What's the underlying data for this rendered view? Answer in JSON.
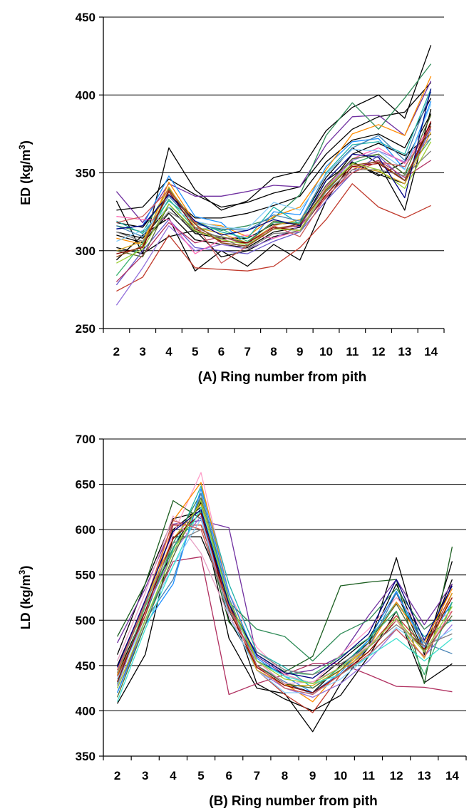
{
  "chart_data": [
    {
      "type": "line",
      "panel": "A",
      "xlabel": "(A)  Ring number from pith",
      "ylabel": "ED (kg/m3)",
      "ylabel_main": "ED (kg/m",
      "ylabel_sup": "3",
      "ylabel_end": ")",
      "x": [
        2,
        3,
        4,
        5,
        6,
        7,
        8,
        9,
        10,
        11,
        12,
        13,
        14
      ],
      "xticks": [
        "2",
        "3",
        "4",
        "5",
        "6",
        "7",
        "8",
        "9",
        "10",
        "11",
        "12",
        "13",
        "14"
      ],
      "ylim": [
        250,
        450
      ],
      "yticks": [
        250,
        300,
        350,
        400,
        450
      ],
      "grid": true,
      "series": [
        {
          "color": "#000000",
          "values": [
            332,
            298,
            366,
            339,
            326,
            332,
            347,
            351,
            377,
            392,
            400,
            385,
            432
          ]
        },
        {
          "color": "#000000",
          "values": [
            326,
            328,
            346,
            336,
            328,
            331,
            337,
            341,
            362,
            378,
            386,
            389,
            408
          ]
        },
        {
          "color": "#000000",
          "values": [
            318,
            315,
            336,
            321,
            321,
            324,
            329,
            335,
            357,
            371,
            375,
            366,
            398
          ]
        },
        {
          "color": "#000000",
          "values": [
            312,
            308,
            328,
            311,
            308,
            308,
            317,
            318,
            347,
            366,
            356,
            326,
            391
          ]
        },
        {
          "color": "#000000",
          "values": [
            294,
            310,
            321,
            287,
            300,
            290,
            304,
            294,
            332,
            357,
            349,
            343,
            382
          ]
        },
        {
          "color": "#000000",
          "values": [
            302,
            298,
            309,
            313,
            296,
            300,
            309,
            313,
            340,
            362,
            369,
            361,
            375
          ]
        },
        {
          "color": "#000000",
          "values": [
            310,
            305,
            324,
            307,
            304,
            302,
            312,
            315,
            345,
            357,
            348,
            357,
            388
          ]
        },
        {
          "color": "#7030a0",
          "values": [
            338,
            318,
            343,
            335,
            335,
            338,
            342,
            341,
            368,
            386,
            387,
            374,
            409
          ]
        },
        {
          "color": "#c0392b",
          "values": [
            274,
            283,
            310,
            289,
            288,
            287,
            290,
            302,
            320,
            343,
            328,
            321,
            329
          ]
        },
        {
          "color": "#2e8b57",
          "values": [
            316,
            312,
            340,
            318,
            313,
            316,
            321,
            336,
            374,
            395,
            378,
            398,
            420
          ]
        },
        {
          "color": "#1e90ff",
          "values": [
            314,
            316,
            348,
            322,
            318,
            303,
            325,
            323,
            354,
            370,
            372,
            352,
            396
          ]
        },
        {
          "color": "#ff8c00",
          "values": [
            308,
            304,
            344,
            318,
            316,
            309,
            322,
            328,
            352,
            375,
            381,
            374,
            412
          ]
        },
        {
          "color": "#9370db",
          "values": [
            265,
            289,
            316,
            300,
            304,
            301,
            308,
            316,
            340,
            358,
            364,
            357,
            372
          ]
        },
        {
          "color": "#6a5acd",
          "values": [
            278,
            300,
            320,
            302,
            300,
            298,
            306,
            312,
            332,
            350,
            361,
            345,
            378
          ]
        },
        {
          "color": "#b03060",
          "values": [
            280,
            297,
            318,
            305,
            309,
            304,
            314,
            316,
            334,
            352,
            358,
            347,
            358
          ]
        },
        {
          "color": "#ff69b4",
          "values": [
            322,
            320,
            320,
            298,
            307,
            310,
            308,
            313,
            341,
            359,
            366,
            356,
            380
          ]
        },
        {
          "color": "#3cb371",
          "values": [
            284,
            305,
            333,
            314,
            314,
            306,
            318,
            318,
            338,
            356,
            362,
            349,
            372
          ]
        },
        {
          "color": "#20b2aa",
          "values": [
            319,
            311,
            332,
            319,
            312,
            308,
            328,
            317,
            350,
            368,
            370,
            362,
            404
          ]
        },
        {
          "color": "#daa520",
          "values": [
            300,
            306,
            341,
            315,
            311,
            305,
            316,
            320,
            336,
            354,
            351,
            343,
            376
          ]
        },
        {
          "color": "#4682b4",
          "values": [
            316,
            309,
            335,
            317,
            314,
            313,
            323,
            319,
            349,
            366,
            374,
            358,
            402
          ]
        },
        {
          "color": "#87cefa",
          "values": [
            306,
            313,
            328,
            319,
            315,
            314,
            331,
            326,
            349,
            365,
            364,
            352,
            394
          ]
        },
        {
          "color": "#556b2f",
          "values": [
            300,
            296,
            330,
            312,
            309,
            305,
            319,
            317,
            342,
            359,
            362,
            349,
            387
          ]
        },
        {
          "color": "#8b0000",
          "values": [
            298,
            302,
            338,
            314,
            306,
            305,
            315,
            313,
            336,
            354,
            356,
            345,
            383
          ]
        },
        {
          "color": "#808080",
          "values": [
            312,
            306,
            325,
            315,
            308,
            301,
            311,
            312,
            338,
            352,
            352,
            348,
            364
          ]
        },
        {
          "color": "#cd5c5c",
          "values": [
            318,
            322,
            339,
            318,
            292,
            303,
            316,
            309,
            335,
            350,
            357,
            354,
            379
          ]
        },
        {
          "color": "#9acd32",
          "values": [
            292,
            301,
            330,
            313,
            307,
            304,
            314,
            313,
            340,
            356,
            352,
            340,
            370
          ]
        },
        {
          "color": "#000080",
          "values": [
            314,
            316,
            336,
            319,
            310,
            313,
            320,
            316,
            345,
            362,
            360,
            334,
            404
          ]
        },
        {
          "color": "#8b4513",
          "values": [
            296,
            303,
            339,
            317,
            305,
            303,
            314,
            317,
            339,
            355,
            357,
            345,
            380
          ]
        }
      ]
    },
    {
      "type": "line",
      "panel": "B",
      "xlabel": "(B)  Ring number from pith",
      "ylabel": "LD (kg/m3)",
      "ylabel_main": "LD (kg/m",
      "ylabel_sup": "3",
      "ylabel_end": ")",
      "x": [
        2,
        3,
        4,
        5,
        6,
        7,
        8,
        9,
        10,
        11,
        12,
        13,
        14
      ],
      "xticks": [
        "2",
        "3",
        "4",
        "5",
        "6",
        "7",
        "8",
        "9",
        "10",
        "11",
        "12",
        "13",
        "14"
      ],
      "ylim": [
        350,
        700
      ],
      "yticks": [
        350,
        400,
        450,
        500,
        550,
        600,
        650,
        700
      ],
      "grid": true,
      "series": [
        {
          "color": "#000000",
          "values": [
            462,
            540,
            612,
            620,
            480,
            425,
            419,
            377,
            430,
            470,
            569,
            462,
            565
          ]
        },
        {
          "color": "#000000",
          "values": [
            408,
            462,
            592,
            592,
            520,
            430,
            413,
            400,
            417,
            460,
            510,
            431,
            452
          ]
        },
        {
          "color": "#000000",
          "values": [
            440,
            510,
            580,
            630,
            500,
            450,
            430,
            420,
            450,
            475,
            540,
            470,
            545
          ]
        },
        {
          "color": "#000000",
          "values": [
            450,
            520,
            600,
            625,
            510,
            455,
            440,
            430,
            455,
            480,
            530,
            465,
            540
          ]
        },
        {
          "color": "#1b5e20",
          "values": [
            482,
            540,
            632,
            612,
            498,
            462,
            443,
            460,
            538,
            542,
            545,
            430,
            581
          ]
        },
        {
          "color": "#7030a0",
          "values": [
            475,
            535,
            606,
            610,
            602,
            460,
            440,
            445,
            460,
            505,
            545,
            495,
            540
          ]
        },
        {
          "color": "#b03060",
          "values": [
            420,
            500,
            565,
            570,
            418,
            430,
            440,
            452,
            452,
            440,
            427,
            426,
            421
          ]
        },
        {
          "color": "#ff9dc8",
          "values": [
            430,
            505,
            595,
            663,
            530,
            470,
            440,
            430,
            462,
            490,
            525,
            490,
            510
          ]
        },
        {
          "color": "#20b2aa",
          "values": [
            420,
            495,
            578,
            648,
            540,
            465,
            448,
            425,
            448,
            478,
            520,
            482,
            500
          ]
        },
        {
          "color": "#2e8b57",
          "values": [
            435,
            505,
            585,
            640,
            520,
            490,
            482,
            455,
            485,
            500,
            535,
            490,
            515
          ]
        },
        {
          "color": "#ff8c00",
          "values": [
            445,
            515,
            610,
            652,
            530,
            455,
            430,
            410,
            445,
            470,
            520,
            475,
            535
          ]
        },
        {
          "color": "#c0392b",
          "values": [
            438,
            505,
            605,
            605,
            520,
            445,
            418,
            398,
            440,
            470,
            505,
            470,
            530
          ]
        },
        {
          "color": "#4682b4",
          "values": [
            425,
            500,
            545,
            640,
            525,
            450,
            432,
            418,
            440,
            470,
            530,
            475,
            463
          ]
        },
        {
          "color": "#1e90ff",
          "values": [
            420,
            495,
            540,
            645,
            530,
            458,
            438,
            420,
            442,
            478,
            532,
            470,
            520
          ]
        },
        {
          "color": "#9370db",
          "values": [
            428,
            510,
            575,
            615,
            505,
            445,
            425,
            415,
            430,
            455,
            490,
            460,
            495
          ]
        },
        {
          "color": "#87cefa",
          "values": [
            435,
            500,
            560,
            612,
            505,
            445,
            420,
            420,
            435,
            460,
            492,
            470,
            490
          ]
        },
        {
          "color": "#daa520",
          "values": [
            440,
            520,
            590,
            628,
            515,
            445,
            428,
            428,
            445,
            465,
            500,
            458,
            530
          ]
        },
        {
          "color": "#3cb371",
          "values": [
            430,
            515,
            580,
            620,
            520,
            462,
            442,
            440,
            460,
            480,
            510,
            440,
            520
          ]
        },
        {
          "color": "#8b0000",
          "values": [
            432,
            510,
            590,
            618,
            512,
            448,
            428,
            420,
            440,
            465,
            500,
            468,
            525
          ]
        },
        {
          "color": "#808080",
          "values": [
            442,
            518,
            585,
            600,
            510,
            465,
            445,
            440,
            452,
            470,
            495,
            472,
            485
          ]
        },
        {
          "color": "#556b2f",
          "values": [
            415,
            495,
            570,
            635,
            515,
            450,
            430,
            425,
            445,
            475,
            518,
            465,
            505
          ]
        },
        {
          "color": "#e6a0c4",
          "values": [
            455,
            530,
            615,
            574,
            505,
            455,
            430,
            432,
            448,
            472,
            500,
            465,
            510
          ]
        },
        {
          "color": "#40e0d0",
          "values": [
            410,
            490,
            560,
            625,
            520,
            455,
            438,
            430,
            440,
            460,
            480,
            455,
            480
          ]
        },
        {
          "color": "#cd5c5c",
          "values": [
            445,
            520,
            610,
            600,
            515,
            450,
            425,
            418,
            440,
            462,
            490,
            460,
            510
          ]
        },
        {
          "color": "#000080",
          "values": [
            448,
            522,
            598,
            622,
            518,
            462,
            442,
            436,
            458,
            485,
            545,
            478,
            538
          ]
        },
        {
          "color": "#9acd32",
          "values": [
            425,
            500,
            575,
            632,
            522,
            455,
            435,
            430,
            448,
            470,
            502,
            465,
            515
          ]
        }
      ]
    }
  ]
}
